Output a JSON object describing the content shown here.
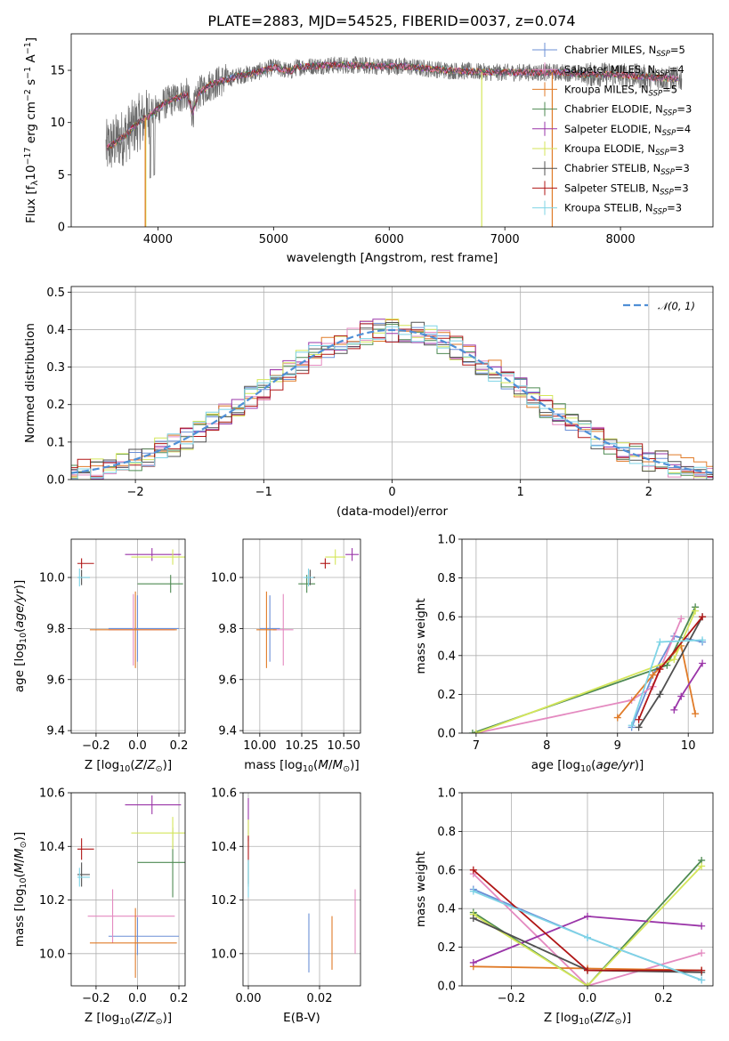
{
  "figure_title": "PLATE=2883, MJD=54525, FIBERID=0037, z=0.074",
  "model_names": [
    "Chabrier MILES",
    "Salpeter MILES",
    "Kroupa MILES",
    "Chabrier ELODIE",
    "Salpeter ELODIE",
    "Kroupa ELODIE",
    "Chabrier STELIB",
    "Salpeter STELIB",
    "Kroupa STELIB"
  ],
  "model_nssp": [
    5,
    4,
    5,
    3,
    4,
    3,
    3,
    3,
    3
  ],
  "model_colors": [
    "#6b8fd6",
    "#e48ac0",
    "#e07b28",
    "#4e8a52",
    "#9a35a8",
    "#d4e65a",
    "#505050",
    "#b01616",
    "#7fd4e6"
  ],
  "chart_data": [
    {
      "id": "spectrum",
      "type": "line",
      "title": "PLATE=2883, MJD=54525, FIBERID=0037, z=0.074",
      "xlabel": "wavelength [Angstrom, rest frame]",
      "ylabel": "Flux [f_λ 10^-17 erg cm^-2 s^-1 A^-1]",
      "xlim": [
        3250,
        8800
      ],
      "ylim": [
        0,
        18.5
      ],
      "xticks": [
        4000,
        5000,
        6000,
        7000,
        8000
      ],
      "yticks": [
        0,
        5,
        10,
        15
      ],
      "grid": false,
      "legend_position": "top-right",
      "legend": [
        "Chabrier MILES, N_SSP=5",
        "Salpeter MILES, N_SSP=4",
        "Kroupa MILES, N_SSP=5",
        "Chabrier ELODIE, N_SSP=3",
        "Salpeter ELODIE, N_SSP=4",
        "Kroupa ELODIE, N_SSP=3",
        "Chabrier STELIB, N_SSP=3",
        "Salpeter STELIB, N_SSP=3",
        "Kroupa STELIB, N_SSP=3"
      ],
      "continuum": {
        "wavelength": [
          3550,
          3700,
          3850,
          3950,
          4050,
          4150,
          4250,
          4300,
          4350,
          4450,
          4550,
          4700,
          4850,
          5000,
          5150,
          5200,
          5300,
          5500,
          5700,
          5900,
          6100,
          6300,
          6500,
          6700,
          6900,
          7100,
          7300,
          7500,
          7700,
          7900,
          8100,
          8300,
          8500
        ],
        "flux": [
          7.5,
          8.6,
          10.2,
          10.8,
          11.8,
          12.3,
          12.7,
          10.9,
          12.8,
          13.6,
          14.0,
          14.5,
          14.8,
          15.3,
          14.9,
          15.3,
          15.4,
          15.5,
          15.5,
          15.4,
          15.4,
          15.2,
          15.0,
          14.9,
          14.8,
          14.8,
          14.8,
          14.8,
          14.6,
          14.6,
          14.5,
          14.3,
          14.2
        ]
      }
    },
    {
      "id": "residuals",
      "type": "histogram",
      "xlabel": "(data-model)/error",
      "ylabel": "Normed distribution",
      "xlim": [
        -2.5,
        2.5
      ],
      "ylim": [
        0,
        0.515
      ],
      "xticks": [
        -2,
        -1,
        0,
        1,
        2
      ],
      "yticks": [
        0.0,
        0.1,
        0.2,
        0.3,
        0.4,
        0.5
      ],
      "grid": true,
      "legend_position": "top-right",
      "legend": [
        "𝒩(0, 1)"
      ],
      "reference_curve": "normal(0,1) pdf",
      "bin_width": 0.1
    },
    {
      "id": "age-vs-Z",
      "type": "errorbar",
      "xlabel": "Z [log10(Z/Z☉)]",
      "ylabel": "age  [log10(age/yr)]",
      "xlim": [
        -0.32,
        0.23
      ],
      "ylim": [
        9.39,
        10.15
      ],
      "xticks": [
        -0.2,
        0.0,
        0.2
      ],
      "yticks": [
        9.4,
        9.6,
        9.8,
        10.0
      ],
      "grid": true,
      "points": [
        {
          "model": "Chabrier MILES",
          "x": 0.0,
          "xerr": [
            0.14,
            0.2
          ],
          "y": 9.8,
          "yerr": 0.13
        },
        {
          "model": "Salpeter MILES",
          "x": -0.02,
          "xerr": [
            0.12,
            0.2
          ],
          "y": 9.795,
          "yerr": 0.14
        },
        {
          "model": "Kroupa MILES",
          "x": -0.01,
          "xerr": [
            0.22,
            0.2
          ],
          "y": 9.795,
          "yerr": 0.15
        },
        {
          "model": "Chabrier ELODIE",
          "x": 0.16,
          "xerr": [
            0.16,
            0.06
          ],
          "y": 9.975,
          "yerr": 0.035
        },
        {
          "model": "Salpeter ELODIE",
          "x": 0.07,
          "xerr": [
            0.13,
            0.14
          ],
          "y": 10.09,
          "yerr": 0.025
        },
        {
          "model": "Kroupa ELODIE",
          "x": 0.17,
          "xerr": [
            0.2,
            0.06
          ],
          "y": 10.08,
          "yerr": 0.03
        },
        {
          "model": "Chabrier STELIB",
          "x": -0.27,
          "xerr": [
            0.02,
            0.04
          ],
          "y": 10.0,
          "yerr": 0.03
        },
        {
          "model": "Salpeter STELIB",
          "x": -0.27,
          "xerr": [
            0.02,
            0.06
          ],
          "y": 10.055,
          "yerr": 0.02
        },
        {
          "model": "Kroupa STELIB",
          "x": -0.28,
          "xerr": [
            0.01,
            0.05
          ],
          "y": 10.0,
          "yerr": 0.035
        }
      ]
    },
    {
      "id": "age-vs-mass",
      "type": "errorbar",
      "xlabel": "mass [log10(M/M☉)]",
      "ylabel": "",
      "xlim": [
        9.9,
        10.6
      ],
      "ylim": [
        9.39,
        10.15
      ],
      "xticks": [
        10.0,
        10.25,
        10.5
      ],
      "yticks": [
        9.4,
        9.6,
        9.8,
        10.0
      ],
      "grid": true,
      "points": [
        {
          "model": "Chabrier MILES",
          "x": 10.06,
          "xerr": 0.06,
          "y": 9.8,
          "yerr": 0.13
        },
        {
          "model": "Salpeter MILES",
          "x": 10.14,
          "xerr": 0.06,
          "y": 9.795,
          "yerr": 0.14
        },
        {
          "model": "Kroupa MILES",
          "x": 10.04,
          "xerr": 0.06,
          "y": 9.795,
          "yerr": 0.15
        },
        {
          "model": "Chabrier ELODIE",
          "x": 10.28,
          "xerr": 0.05,
          "y": 9.975,
          "yerr": 0.035
        },
        {
          "model": "Salpeter ELODIE",
          "x": 10.55,
          "xerr": 0.04,
          "y": 10.09,
          "yerr": 0.025
        },
        {
          "model": "Kroupa ELODIE",
          "x": 10.45,
          "xerr": 0.06,
          "y": 10.08,
          "yerr": 0.03
        },
        {
          "model": "Chabrier STELIB",
          "x": 10.3,
          "xerr": 0.03,
          "y": 10.0,
          "yerr": 0.03
        },
        {
          "model": "Salpeter STELIB",
          "x": 10.39,
          "xerr": 0.03,
          "y": 10.055,
          "yerr": 0.02
        },
        {
          "model": "Kroupa STELIB",
          "x": 10.29,
          "xerr": 0.03,
          "y": 10.0,
          "yerr": 0.035
        }
      ]
    },
    {
      "id": "weight-vs-age",
      "type": "line",
      "xlabel": "age  [log10(age/yr)]",
      "ylabel": "mass weight",
      "xlim": [
        6.8,
        10.35
      ],
      "ylim": [
        0,
        1
      ],
      "xticks": [
        7,
        8,
        9,
        10
      ],
      "yticks": [
        0.0,
        0.2,
        0.4,
        0.6,
        0.8,
        1.0
      ],
      "grid": true,
      "series": [
        {
          "model": "Chabrier MILES",
          "x": [
            9.2,
            9.5,
            9.8,
            10.2
          ],
          "y": [
            0.03,
            0.3,
            0.5,
            0.47
          ]
        },
        {
          "model": "Salpeter MILES",
          "x": [
            7.0,
            9.2,
            9.5,
            9.9
          ],
          "y": [
            0.0,
            0.17,
            0.24,
            0.59
          ]
        },
        {
          "model": "Kroupa MILES",
          "x": [
            9.0,
            9.5,
            9.9,
            10.1
          ],
          "y": [
            0.08,
            0.3,
            0.45,
            0.1
          ]
        },
        {
          "model": "Chabrier ELODIE",
          "x": [
            6.95,
            9.7,
            10.1
          ],
          "y": [
            0.0,
            0.35,
            0.65
          ]
        },
        {
          "model": "Salpeter ELODIE",
          "x": [
            9.8,
            9.9,
            10.2
          ],
          "y": [
            0.12,
            0.19,
            0.36
          ]
        },
        {
          "model": "Kroupa ELODIE",
          "x": [
            7.0,
            9.8,
            10.1
          ],
          "y": [
            0.0,
            0.38,
            0.63
          ]
        },
        {
          "model": "Chabrier STELIB",
          "x": [
            9.3,
            9.6,
            10.2
          ],
          "y": [
            0.03,
            0.2,
            0.6
          ]
        },
        {
          "model": "Salpeter STELIB",
          "x": [
            9.3,
            9.6,
            10.2
          ],
          "y": [
            0.07,
            0.33,
            0.6
          ]
        },
        {
          "model": "Kroupa STELIB",
          "x": [
            9.2,
            9.6,
            10.2
          ],
          "y": [
            0.04,
            0.47,
            0.48
          ]
        }
      ]
    },
    {
      "id": "mass-vs-Z",
      "type": "errorbar",
      "xlabel": "Z [log10(Z/Z☉)]",
      "ylabel": "mass [log10(M/M☉)]",
      "xlim": [
        -0.32,
        0.23
      ],
      "ylim": [
        9.88,
        10.6
      ],
      "xticks": [
        -0.2,
        0.0,
        0.2
      ],
      "yticks": [
        10.0,
        10.2,
        10.4,
        10.6
      ],
      "grid": true,
      "points": [
        {
          "model": "Chabrier MILES",
          "x": 0.0,
          "xerr": [
            0.14,
            0.2
          ],
          "y": 10.065,
          "yerr": 0.07
        },
        {
          "model": "Salpeter MILES",
          "x": -0.12,
          "xerr": [
            0.12,
            0.3
          ],
          "y": 10.14,
          "yerr": 0.1
        },
        {
          "model": "Kroupa MILES",
          "x": -0.01,
          "xerr": [
            0.22,
            0.2
          ],
          "y": 10.04,
          "yerr": 0.13
        },
        {
          "model": "Chabrier ELODIE",
          "x": 0.17,
          "xerr": [
            0.17,
            0.06
          ],
          "y": 10.34,
          "yerr": 0.13
        },
        {
          "model": "Salpeter ELODIE",
          "x": 0.07,
          "xerr": [
            0.13,
            0.14
          ],
          "y": 10.555,
          "yerr": 0.035
        },
        {
          "model": "Kroupa ELODIE",
          "x": 0.17,
          "xerr": [
            0.2,
            0.06
          ],
          "y": 10.45,
          "yerr": 0.06
        },
        {
          "model": "Chabrier STELIB",
          "x": -0.27,
          "xerr": [
            0.02,
            0.04
          ],
          "y": 10.295,
          "yerr": 0.045
        },
        {
          "model": "Salpeter STELIB",
          "x": -0.27,
          "xerr": [
            0.02,
            0.06
          ],
          "y": 10.39,
          "yerr": 0.04
        },
        {
          "model": "Kroupa STELIB",
          "x": -0.28,
          "xerr": [
            0.01,
            0.05
          ],
          "y": 10.285,
          "yerr": 0.035
        }
      ]
    },
    {
      "id": "mass-vs-EBV",
      "type": "errorbar",
      "xlabel": "E(B-V)",
      "ylabel": "",
      "xlim": [
        -0.0015,
        0.0315
      ],
      "ylim": [
        9.88,
        10.6
      ],
      "xticks": [
        0.0,
        0.02
      ],
      "yticks": [
        10.0,
        10.2,
        10.4,
        10.6
      ],
      "grid": true,
      "points": [
        {
          "model": "Chabrier MILES",
          "x": 0.017,
          "y": 10.04,
          "yerr": 0.11
        },
        {
          "model": "Salpeter MILES",
          "x": 0.03,
          "y": 10.12,
          "yerr": 0.12
        },
        {
          "model": "Kroupa MILES",
          "x": 0.0235,
          "y": 10.04,
          "yerr": 0.1
        },
        {
          "model": "Chabrier ELODIE",
          "x": 0.0,
          "y": 10.3,
          "yerr": 0.05
        },
        {
          "model": "Salpeter ELODIE",
          "x": 0.0,
          "y": 10.5,
          "yerr": 0.08
        },
        {
          "model": "Kroupa ELODIE",
          "x": 0.0,
          "y": 10.45,
          "yerr": 0.05
        },
        {
          "model": "Chabrier STELIB",
          "x": 0.0,
          "y": 10.3,
          "yerr": 0.04
        },
        {
          "model": "Salpeter STELIB",
          "x": 0.0,
          "y": 10.39,
          "yerr": 0.05
        },
        {
          "model": "Kroupa STELIB",
          "x": 0.0,
          "y": 10.28,
          "yerr": 0.07
        }
      ]
    },
    {
      "id": "weight-vs-Z",
      "type": "line",
      "xlabel": "Z [log10(Z/Z☉)]",
      "ylabel": "mass weight",
      "xlim": [
        -0.33,
        0.33
      ],
      "ylim": [
        0,
        1
      ],
      "xticks": [
        -0.2,
        0.0,
        0.2
      ],
      "yticks": [
        0.0,
        0.2,
        0.4,
        0.6,
        0.8,
        1.0
      ],
      "grid": true,
      "series": [
        {
          "model": "Chabrier MILES",
          "x": [
            -0.3,
            0.0,
            0.3
          ],
          "y": [
            0.5,
            0.25,
            0.03
          ]
        },
        {
          "model": "Salpeter MILES",
          "x": [
            -0.3,
            0.0,
            0.3
          ],
          "y": [
            0.58,
            0.0,
            0.17
          ]
        },
        {
          "model": "Kroupa MILES",
          "x": [
            -0.3,
            0.0,
            0.3
          ],
          "y": [
            0.1,
            0.09,
            0.08
          ]
        },
        {
          "model": "Chabrier ELODIE",
          "x": [
            -0.3,
            0.0,
            0.3
          ],
          "y": [
            0.38,
            0.0,
            0.65
          ]
        },
        {
          "model": "Salpeter ELODIE",
          "x": [
            -0.3,
            0.0,
            0.3
          ],
          "y": [
            0.12,
            0.36,
            0.31
          ]
        },
        {
          "model": "Kroupa ELODIE",
          "x": [
            -0.3,
            0.0,
            0.3
          ],
          "y": [
            0.37,
            0.0,
            0.62
          ]
        },
        {
          "model": "Chabrier STELIB",
          "x": [
            -0.3,
            0.0,
            0.3
          ],
          "y": [
            0.35,
            0.08,
            0.07
          ]
        },
        {
          "model": "Salpeter STELIB",
          "x": [
            -0.3,
            0.0,
            0.3
          ],
          "y": [
            0.6,
            0.08,
            0.08
          ]
        },
        {
          "model": "Kroupa STELIB",
          "x": [
            -0.3,
            0.0,
            0.3
          ],
          "y": [
            0.49,
            0.25,
            0.03
          ]
        }
      ]
    }
  ]
}
